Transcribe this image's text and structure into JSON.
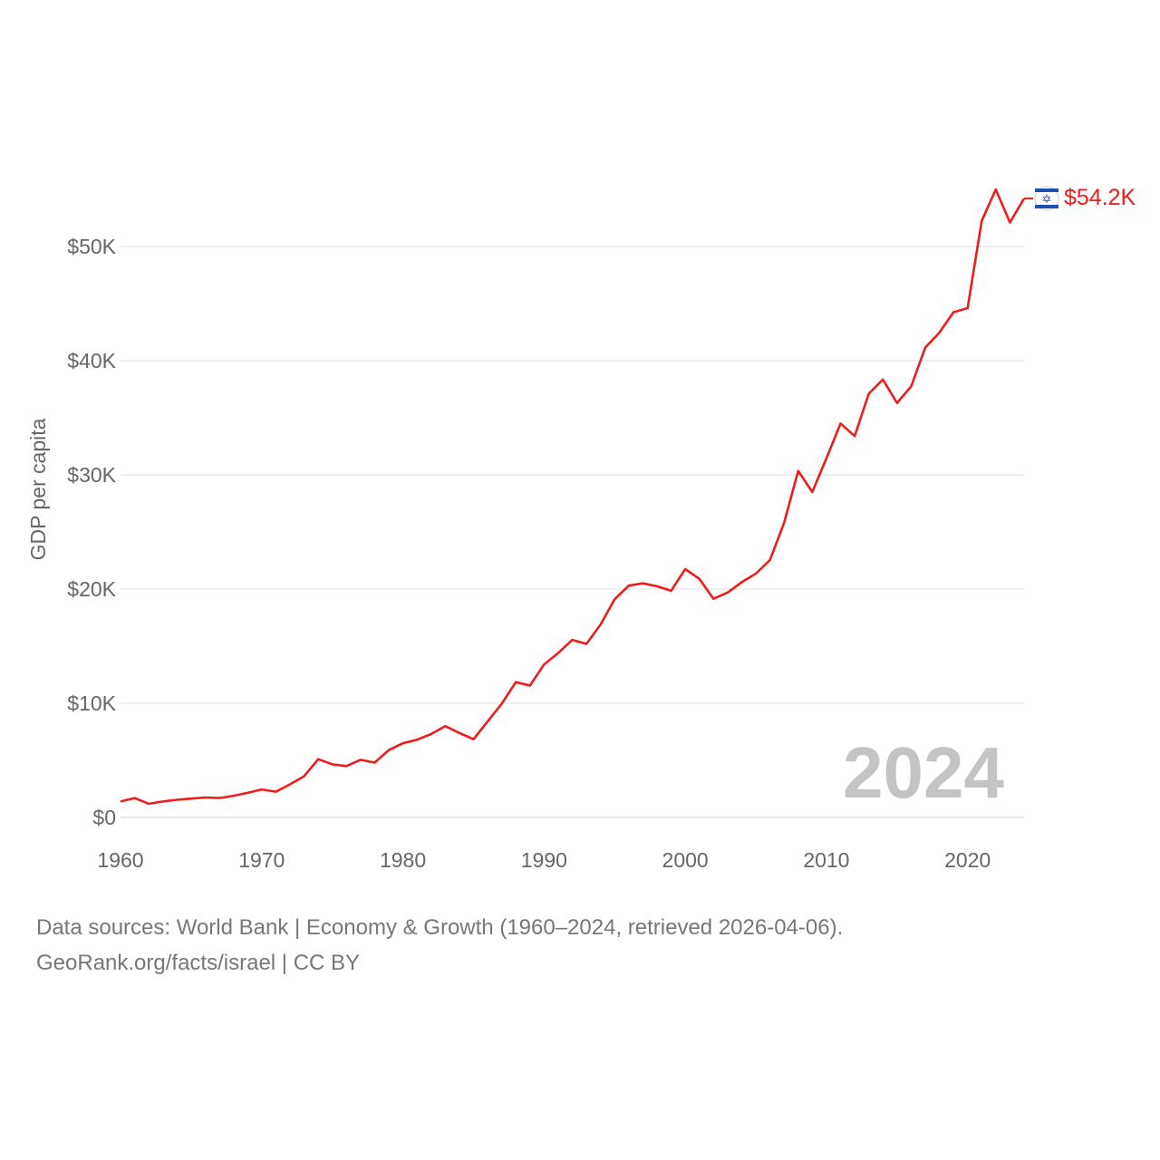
{
  "chart_data": {
    "type": "line",
    "ylabel": "GDP per capita",
    "xlim": [
      1960,
      2024
    ],
    "ylim": [
      0,
      55000
    ],
    "grid": true,
    "x_ticks": [
      1960,
      1970,
      1980,
      1990,
      2000,
      2010,
      2020
    ],
    "x_tick_labels": [
      "1960",
      "1970",
      "1980",
      "1990",
      "2000",
      "2010",
      "2020"
    ],
    "y_ticks": [
      0,
      10000,
      20000,
      30000,
      40000,
      50000
    ],
    "y_tick_labels": [
      "$0",
      "$10K",
      "$20K",
      "$30K",
      "$40K",
      "$50K"
    ],
    "current_year_label": "2024",
    "series": [
      {
        "name": "Israel",
        "color": "#ee1c1c",
        "flag_icon": "israel-flag-icon",
        "end_label": "$54.2K",
        "x": [
          1960,
          1961,
          1962,
          1963,
          1964,
          1965,
          1966,
          1967,
          1968,
          1969,
          1970,
          1971,
          1972,
          1973,
          1974,
          1975,
          1976,
          1977,
          1978,
          1979,
          1980,
          1981,
          1982,
          1983,
          1984,
          1985,
          1986,
          1987,
          1988,
          1989,
          1990,
          1991,
          1992,
          1993,
          1994,
          1995,
          1996,
          1997,
          1998,
          1999,
          2000,
          2001,
          2002,
          2003,
          2004,
          2005,
          2006,
          2007,
          2008,
          2009,
          2010,
          2011,
          2012,
          2013,
          2014,
          2015,
          2016,
          2017,
          2018,
          2019,
          2020,
          2021,
          2022,
          2023,
          2024
        ],
        "values": [
          1400,
          1700,
          1200,
          1400,
          1550,
          1650,
          1750,
          1700,
          1900,
          2150,
          2450,
          2250,
          2900,
          3600,
          5100,
          4650,
          4500,
          5050,
          4800,
          5900,
          6500,
          6800,
          7300,
          8000,
          7400,
          6850,
          8400,
          9950,
          11850,
          11550,
          13400,
          14400,
          15550,
          15200,
          16900,
          19100,
          20300,
          20500,
          20250,
          19850,
          21750,
          20900,
          19150,
          19700,
          20600,
          21350,
          22550,
          25800,
          30350,
          28500,
          31450,
          34500,
          33400,
          37100,
          38350,
          36300,
          37750,
          41150,
          42450,
          44250,
          44600,
          52250,
          55000,
          52100,
          54200
        ]
      }
    ]
  },
  "footer": {
    "line1": "Data sources: World Bank | Economy & Growth (1960–2024, retrieved 2026-04-06).",
    "line2": "GeoRank.org/facts/israel | CC BY"
  }
}
